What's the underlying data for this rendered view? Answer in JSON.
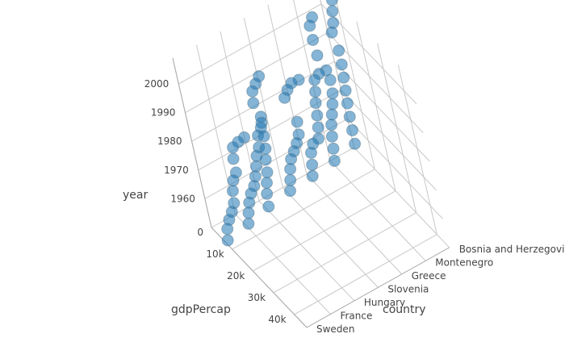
{
  "chart_data": {
    "type": "scatter3d",
    "title": "",
    "marker_color": "#1f77b4",
    "marker_opacity": 0.55,
    "axes": {
      "x": {
        "title": "country",
        "categories": [
          "Sweden",
          "France",
          "Hungary",
          "Slovenia",
          "Greece",
          "Montenegro",
          "Bosnia and Herzegovina"
        ]
      },
      "y": {
        "title": "gdpPercap",
        "tick_values": [
          0,
          10000,
          20000,
          30000,
          40000
        ],
        "tick_labels": [
          "0",
          "10k",
          "20k",
          "30k",
          "40k"
        ],
        "range": [
          0,
          46000
        ]
      },
      "z": {
        "title": "year",
        "tick_values": [
          1960,
          1970,
          1980,
          1990,
          2000
        ],
        "tick_labels": [
          "1960",
          "1970",
          "1980",
          "1990",
          "2000"
        ],
        "range": [
          1950,
          2009
        ]
      }
    },
    "years": [
      1952,
      1957,
      1962,
      1967,
      1972,
      1977,
      1982,
      1987,
      1992,
      1997,
      2002,
      2007
    ],
    "series": [
      {
        "name": "Sweden",
        "x": [
          "Sweden",
          "Sweden",
          "Sweden",
          "Sweden",
          "Sweden",
          "Sweden",
          "Sweden",
          "Sweden",
          "Sweden",
          "Sweden",
          "Sweden",
          "Sweden"
        ],
        "y": [
          8528,
          9912,
          12329,
          15258,
          17832,
          18855,
          20667,
          23586,
          23880,
          25267,
          29342,
          33860
        ],
        "z": [
          1952,
          1957,
          1962,
          1967,
          1972,
          1977,
          1982,
          1987,
          1992,
          1997,
          2002,
          2007
        ]
      },
      {
        "name": "France",
        "x": [
          "France",
          "France",
          "France",
          "France",
          "France",
          "France",
          "France",
          "France",
          "France",
          "France",
          "France",
          "France"
        ],
        "y": [
          7030,
          8663,
          10560,
          12999,
          16107,
          18293,
          20294,
          22066,
          24704,
          25890,
          28926,
          30470
        ],
        "z": [
          1952,
          1957,
          1962,
          1967,
          1972,
          1977,
          1982,
          1987,
          1992,
          1997,
          2002,
          2007
        ]
      },
      {
        "name": "Hungary",
        "x": [
          "Hungary",
          "Hungary",
          "Hungary",
          "Hungary",
          "Hungary",
          "Hungary",
          "Hungary",
          "Hungary",
          "Hungary",
          "Hungary",
          "Hungary",
          "Hungary"
        ],
        "y": [
          5264,
          6040,
          7550,
          9326,
          10168,
          11674,
          12546,
          12986,
          10536,
          11712,
          14843,
          18009
        ],
        "z": [
          1952,
          1957,
          1962,
          1967,
          1972,
          1977,
          1982,
          1987,
          1992,
          1997,
          2002,
          2007
        ]
      },
      {
        "name": "Slovenia",
        "x": [
          "Slovenia",
          "Slovenia",
          "Slovenia",
          "Slovenia",
          "Slovenia",
          "Slovenia",
          "Slovenia",
          "Slovenia",
          "Slovenia",
          "Slovenia",
          "Slovenia",
          "Slovenia"
        ],
        "y": [
          4215,
          5862,
          7402,
          9405,
          12383,
          15277,
          17867,
          18678,
          14215,
          17161,
          20660,
          25768
        ],
        "z": [
          1952,
          1957,
          1962,
          1967,
          1972,
          1977,
          1982,
          1987,
          1992,
          1997,
          2002,
          2007
        ]
      },
      {
        "name": "Greece",
        "x": [
          "Greece",
          "Greece",
          "Greece",
          "Greece",
          "Greece",
          "Greece",
          "Greece",
          "Greece",
          "Greece",
          "Greece",
          "Greece",
          "Greece"
        ],
        "y": [
          3531,
          4916,
          6017,
          8513,
          12725,
          14196,
          15268,
          16121,
          17541,
          18748,
          22514,
          27538
        ],
        "z": [
          1952,
          1957,
          1962,
          1967,
          1972,
          1977,
          1982,
          1987,
          1992,
          1997,
          2002,
          2007
        ]
      },
      {
        "name": "Montenegro",
        "x": [
          "Montenegro",
          "Montenegro",
          "Montenegro",
          "Montenegro",
          "Montenegro",
          "Montenegro",
          "Montenegro",
          "Montenegro",
          "Montenegro",
          "Montenegro",
          "Montenegro",
          "Montenegro"
        ],
        "y": [
          2648,
          3682,
          4650,
          5907,
          7778,
          9595,
          11222,
          11733,
          7003,
          6466,
          6557,
          9254
        ],
        "z": [
          1952,
          1957,
          1962,
          1967,
          1972,
          1977,
          1982,
          1987,
          1992,
          1997,
          2002,
          2007
        ]
      },
      {
        "name": "Bosnia and Herzegovina",
        "x": [
          "Bosnia and Herzegovina",
          "Bosnia and Herzegovina",
          "Bosnia and Herzegovina",
          "Bosnia and Herzegovina",
          "Bosnia and Herzegovina",
          "Bosnia and Herzegovina",
          "Bosnia and Herzegovina",
          "Bosnia and Herzegovina",
          "Bosnia and Herzegovina",
          "Bosnia and Herzegovina",
          "Bosnia and Herzegovina",
          "Bosnia and Herzegovina"
        ],
        "y": [
          974,
          1354,
          1710,
          2172,
          2860,
          3528,
          4127,
          4314,
          2547,
          4766,
          6019,
          7446
        ],
        "z": [
          1952,
          1957,
          1962,
          1967,
          1972,
          1977,
          1982,
          1987,
          1992,
          1997,
          2002,
          2007
        ]
      }
    ]
  }
}
